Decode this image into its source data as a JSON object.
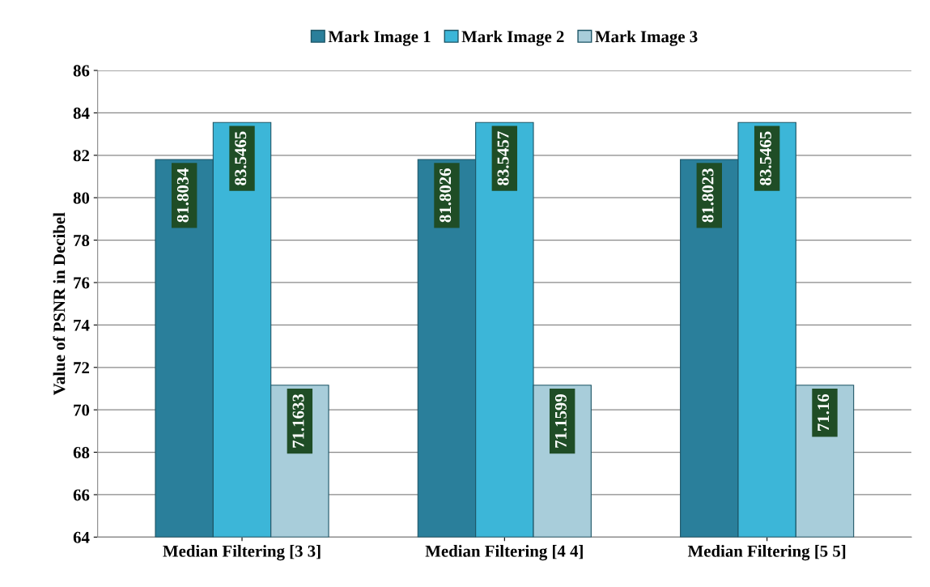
{
  "chart_data": {
    "type": "bar",
    "categories": [
      "Median Filtering [3 3]",
      "Median Filtering [4 4]",
      "Median Filtering [5 5]"
    ],
    "series": [
      {
        "name": "Mark Image 1",
        "color": "#2a7f9b",
        "values": [
          81.8034,
          81.8026,
          81.8023
        ]
      },
      {
        "name": "Mark Image 2",
        "color": "#3cb6d8",
        "values": [
          83.5465,
          83.5457,
          83.5465
        ]
      },
      {
        "name": "Mark Image 3",
        "color": "#a8cdda",
        "values": [
          71.1633,
          71.1599,
          71.16
        ]
      }
    ],
    "ylabel": "Value of PSNR in Decibel",
    "ylim": [
      64,
      86
    ],
    "yticks": [
      64,
      66,
      68,
      70,
      72,
      74,
      76,
      78,
      80,
      82,
      84,
      86
    ],
    "grid": "y",
    "legend": "top",
    "data_labels": true
  }
}
